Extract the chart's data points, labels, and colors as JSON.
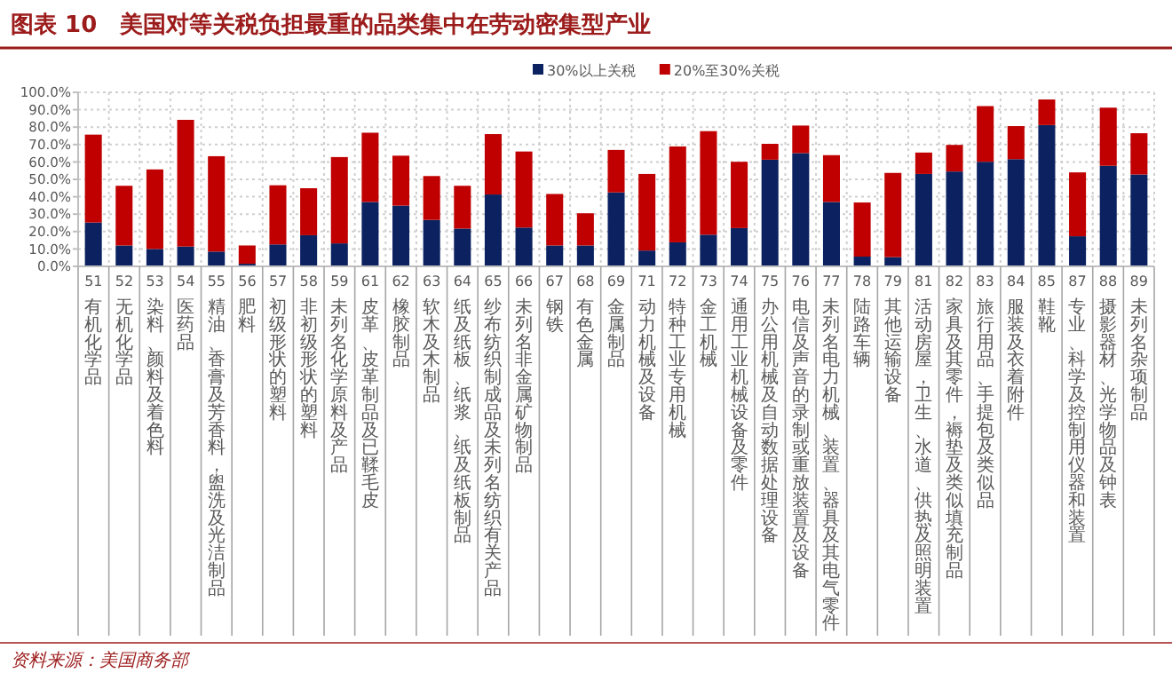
{
  "chart_data": {
    "type": "bar",
    "title": "图表 10　美国对等关税负担最重的品类集中在劳动密集型产业",
    "stacked": true,
    "legend": "top",
    "grid": true,
    "categories": [
      "51 有机化学品",
      "52 无机化学品",
      "53 染料、颜料及着色料",
      "54 医药品",
      "55 精油、香膏及芳香料，盥洗及光洁制品",
      "56 肥料",
      "57 初级形状的塑料",
      "58 非初级形状的塑料",
      "59 未列名化学原料及产品",
      "61 皮革、皮革制品及已鞣毛皮",
      "62 橡胶制品",
      "63 软木及木制品",
      "64 纸及纸板、纸浆、纸及纸板制品",
      "65 纱布纺织制成品及未列名纺织有关产品",
      "66 未列名非金属矿物制品",
      "67 钢铁",
      "68 有色金属",
      "69 金属制品",
      "71 动力机械及设备",
      "72 特种工业专用机械",
      "73 金工机械",
      "74 通用工业机械设备及零件",
      "75 办公用机械及自动数据处理设备",
      "76 电信及声音的录制或重放装置及设备",
      "77 未列名电力机械、装置、器具及其电气零件",
      "78 陆路车辆",
      "79 其他运输设备",
      "81 活动房屋，卫生、水道、供热及照明装置",
      "82 家具及其零件，褥垫及类似填充制品",
      "83 旅行用品、手提包及类似品",
      "84 服装及衣着附件",
      "85 鞋靴",
      "87 专业、科学及控制用仪器和装置",
      "88 摄影器材、光学物品及钟表",
      "89 未列名杂项制品"
    ],
    "series": [
      {
        "name": "30%以上关税",
        "color": "#0b2160",
        "values": [
          25.2,
          12,
          10,
          11.4,
          8.5,
          1.5,
          12.6,
          17.9,
          13.2,
          37,
          34.9,
          26.7,
          21.7,
          41.3,
          22.3,
          12,
          12,
          42.5,
          9.1,
          13.8,
          18.2,
          22,
          61.3,
          65.1,
          37,
          5.6,
          5.3,
          53.1,
          54.5,
          60.1,
          61.6,
          81.2,
          17.3,
          57.8,
          52.8
        ]
      },
      {
        "name": "20%至30%关税",
        "color": "#c00000",
        "values": [
          50.5,
          34.3,
          45.7,
          72.8,
          54.8,
          10.5,
          34,
          27,
          49.6,
          39.8,
          28.7,
          25.2,
          24.6,
          34.7,
          43.7,
          29.6,
          18.5,
          24.4,
          44,
          55.1,
          59.5,
          38.1,
          9.1,
          15.8,
          26.9,
          31.1,
          48.4,
          12.3,
          15.3,
          32,
          19,
          14.7,
          36.7,
          33.4,
          23.7
        ]
      }
    ],
    "ylim": [
      0,
      100
    ],
    "yticks": [
      {
        "value": 0,
        "label": "0.0%"
      },
      {
        "value": 10,
        "label": "10.0%"
      },
      {
        "value": 20,
        "label": "20.0%"
      },
      {
        "value": 30,
        "label": "30.0%"
      },
      {
        "value": 40,
        "label": "40.0%"
      },
      {
        "value": 50,
        "label": "50.0%"
      },
      {
        "value": 60,
        "label": "60.0%"
      },
      {
        "value": 70,
        "label": "70.0%"
      },
      {
        "value": 80,
        "label": "80.0%"
      },
      {
        "value": 90,
        "label": "90.0%"
      },
      {
        "value": 100,
        "label": "100.0%"
      }
    ],
    "annotations": [
      "资料来源：美国商务部"
    ]
  }
}
